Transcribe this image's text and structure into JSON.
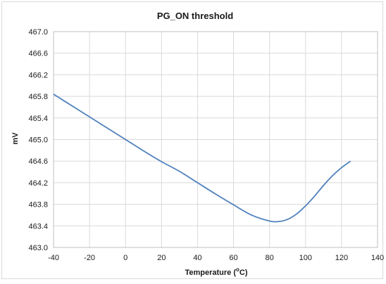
{
  "chart_data": {
    "type": "line",
    "title": "PG_ON threshold",
    "xlabel_main": "Temperature (",
    "xlabel_sup": "o",
    "xlabel_end": "C)",
    "ylabel": "mV",
    "xlim": [
      -40,
      140
    ],
    "ylim": [
      463.0,
      467.0
    ],
    "x_ticks": [
      "-40",
      "-20",
      "0",
      "20",
      "40",
      "60",
      "80",
      "100",
      "120",
      "140"
    ],
    "y_ticks": [
      "467.0",
      "466.6",
      "466.2",
      "465.8",
      "465.4",
      "465.0",
      "464.6",
      "464.2",
      "463.8",
      "463.4",
      "463.0"
    ],
    "grid": true,
    "series": [
      {
        "color": "#4f81bd",
        "x": [
          -40,
          -30,
          -20,
          -10,
          0,
          10,
          20,
          30,
          40,
          50,
          60,
          70,
          80,
          85,
          90,
          95,
          100,
          105,
          110,
          115,
          120,
          125
        ],
        "y": [
          465.84,
          465.63,
          465.42,
          465.21,
          465.0,
          464.79,
          464.59,
          464.41,
          464.2,
          463.99,
          463.79,
          463.6,
          463.49,
          463.48,
          463.52,
          463.62,
          463.77,
          463.95,
          464.15,
          464.33,
          464.48,
          464.6
        ]
      }
    ]
  }
}
